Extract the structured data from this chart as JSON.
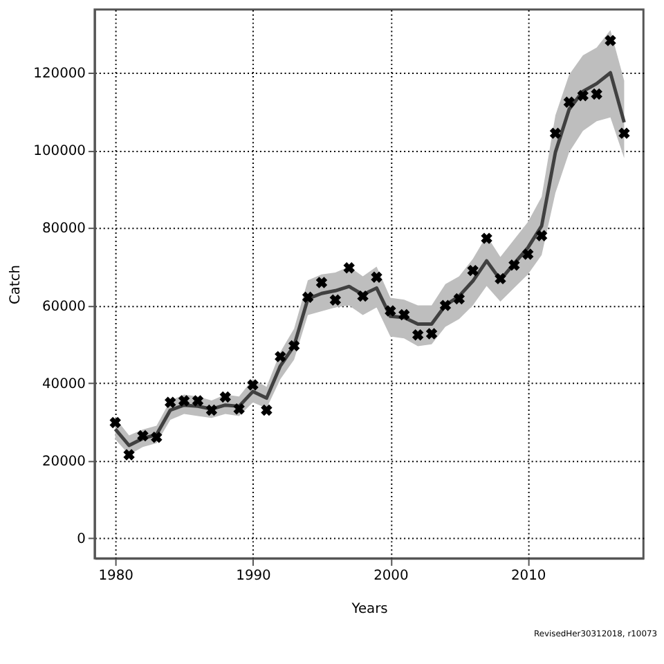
{
  "chart_data": {
    "type": "line",
    "xlabel": "Years",
    "ylabel": "Catch",
    "x": [
      1980,
      1981,
      1982,
      1983,
      1984,
      1985,
      1986,
      1987,
      1988,
      1989,
      1990,
      1991,
      1992,
      1993,
      1994,
      1995,
      1996,
      1997,
      1998,
      1999,
      2000,
      2001,
      2002,
      2003,
      2004,
      2005,
      2006,
      2007,
      2008,
      2009,
      2010,
      2011,
      2012,
      2013,
      2014,
      2015,
      2016,
      2017
    ],
    "series": [
      {
        "color": "#404040",
        "marker": "none",
        "line_style": "solid",
        "values": [
          28100,
          23900,
          25700,
          26700,
          33000,
          34300,
          34000,
          33300,
          34300,
          34000,
          37800,
          36100,
          44400,
          49600,
          61700,
          63100,
          63800,
          64900,
          62800,
          64500,
          57200,
          56900,
          55200,
          55200,
          60000,
          62400,
          66300,
          71500,
          66600,
          70800,
          74900,
          80500,
          99500,
          110600,
          115200,
          117200,
          120000,
          107200
        ],
        "lower": [
          25500,
          21500,
          23500,
          24500,
          30500,
          32000,
          31500,
          31000,
          32000,
          31500,
          35000,
          33500,
          41000,
          46000,
          57500,
          58500,
          59500,
          60000,
          57500,
          59500,
          52000,
          51500,
          49500,
          50000,
          54500,
          56500,
          60000,
          65000,
          61000,
          64500,
          68000,
          73000,
          89000,
          99500,
          105000,
          107500,
          108500,
          98000
        ],
        "upper": [
          31000,
          26500,
          28000,
          29000,
          35500,
          37000,
          36500,
          35500,
          37000,
          36500,
          41000,
          39000,
          48000,
          54000,
          66500,
          68000,
          68500,
          70000,
          67500,
          70000,
          62000,
          61500,
          60000,
          60000,
          65500,
          67500,
          72000,
          78000,
          72500,
          77000,
          81500,
          88000,
          109000,
          119500,
          124500,
          126500,
          131000,
          118000
        ]
      },
      {
        "type": "scatter",
        "color": "#000000",
        "marker": "cross",
        "values": [
          29800,
          21500,
          26400,
          26000,
          35000,
          35400,
          35400,
          33000,
          36400,
          33300,
          39500,
          33000,
          46800,
          49600,
          62100,
          65900,
          61400,
          69700,
          62400,
          67300,
          58600,
          57600,
          52400,
          52700,
          60000,
          61700,
          69000,
          77300,
          66900,
          70400,
          73200,
          78000,
          104400,
          112400,
          114100,
          114500,
          128300,
          104400
        ]
      }
    ],
    "xlim": [
      1978.5,
      2018.4
    ],
    "ylim": [
      -5200,
      136300
    ],
    "xticks": [
      1980,
      1990,
      2000,
      2010
    ],
    "yticks": [
      0,
      20000,
      40000,
      60000,
      80000,
      100000,
      120000
    ],
    "grid": true,
    "annotations": [
      "RevisedHer30312018, r10073"
    ]
  }
}
